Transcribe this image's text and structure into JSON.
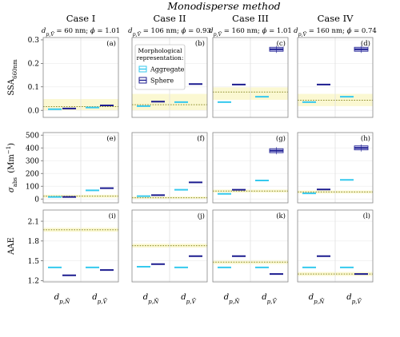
{
  "title": "Monodisperse method",
  "chart_data": {
    "type": "box",
    "columns": [
      {
        "case": "Case I",
        "subtitle": "d_p,V̄ = 60 nm; ϕ = 1.01"
      },
      {
        "case": "Case II",
        "subtitle": "d_p,V̄ = 106 nm; ϕ = 0.93"
      },
      {
        "case": "Case III",
        "subtitle": "d_p,V̄ = 160 nm; ϕ = 1.01"
      },
      {
        "case": "Case IV",
        "subtitle": "d_p,V̄ = 160 nm; ϕ = 0.74"
      }
    ],
    "x_categories": [
      "d_p,N̄",
      "d_p,V̄"
    ],
    "legend": {
      "title": "Morphological representation:",
      "entries": [
        {
          "name": "Aggregate",
          "color": "#35c9ee"
        },
        {
          "name": "Sphere",
          "color": "#1b1b8f"
        }
      ],
      "placement": "top-left of panel (b)"
    },
    "reference_line_color": "#8c8c2a",
    "reference_band_color": "#fbf8d2",
    "rows": [
      {
        "ylabel": "SSA_660nm",
        "ylim": [
          -0.03,
          0.31
        ],
        "yticks": [
          0.0,
          0.1,
          0.2,
          0.3
        ],
        "ytick_labels": [
          "0.0",
          "0.1",
          "0.2",
          "0.3"
        ],
        "panels": [
          {
            "label": "(a)",
            "reference": 0.016,
            "band": [
              0.0,
              0.048
            ],
            "aggregate": [
              {
                "x": "d_p,N̄",
                "value": 0.005
              },
              {
                "x": "d_p,V̄",
                "value": 0.012
              }
            ],
            "sphere": [
              {
                "x": "d_p,N̄",
                "value": 0.008
              },
              {
                "x": "d_p,V̄",
                "value": 0.021
              }
            ]
          },
          {
            "label": "(b)",
            "reference": 0.024,
            "band": [
              0.0,
              0.07
            ],
            "aggregate": [
              {
                "x": "d_p,N̄",
                "value": 0.018
              },
              {
                "x": "d_p,V̄",
                "value": 0.035
              }
            ],
            "sphere": [
              {
                "x": "d_p,N̄",
                "value": 0.037
              },
              {
                "x": "d_p,V̄",
                "value": 0.112
              }
            ]
          },
          {
            "label": "(c)",
            "reference": 0.078,
            "band": [
              0.045,
              0.098
            ],
            "aggregate": [
              {
                "x": "d_p,N̄",
                "value": 0.035
              },
              {
                "x": "d_p,V̄",
                "value": 0.058
              }
            ],
            "sphere": [
              {
                "x": "d_p,N̄",
                "value": 0.11
              },
              {
                "x": "d_p,V̄",
                "value": 0.26
              }
            ]
          },
          {
            "label": "(d)",
            "reference": 0.043,
            "band": [
              0.018,
              0.07
            ],
            "aggregate": [
              {
                "x": "d_p,N̄",
                "value": 0.035
              },
              {
                "x": "d_p,V̄",
                "value": 0.058
              }
            ],
            "sphere": [
              {
                "x": "d_p,N̄",
                "value": 0.11
              },
              {
                "x": "d_p,V̄",
                "value": 0.26
              }
            ]
          }
        ]
      },
      {
        "ylabel": "σ_abs (Mm⁻¹)",
        "ylim": [
          -30,
          520
        ],
        "yticks": [
          0,
          100,
          200,
          300,
          400,
          500
        ],
        "ytick_labels": [
          "0",
          "100",
          "200",
          "300",
          "400",
          "500"
        ],
        "panels": [
          {
            "label": "(e)",
            "reference": 22,
            "band": [
              10,
              34
            ],
            "aggregate": [
              {
                "x": "d_p,N̄",
                "value": 16
              },
              {
                "x": "d_p,V̄",
                "value": 68
              }
            ],
            "sphere": [
              {
                "x": "d_p,N̄",
                "value": 16
              },
              {
                "x": "d_p,V̄",
                "value": 85
              }
            ]
          },
          {
            "label": "(f)",
            "reference": 10,
            "band": [
              0,
              20
            ],
            "aggregate": [
              {
                "x": "d_p,N̄",
                "value": 22
              },
              {
                "x": "d_p,V̄",
                "value": 72
              }
            ],
            "sphere": [
              {
                "x": "d_p,N̄",
                "value": 30
              },
              {
                "x": "d_p,V̄",
                "value": 130
              }
            ]
          },
          {
            "label": "(g)",
            "reference": 62,
            "band": [
              50,
              74
            ],
            "aggregate": [
              {
                "x": "d_p,N̄",
                "value": 40
              },
              {
                "x": "d_p,V̄",
                "value": 145
              }
            ],
            "sphere": [
              {
                "x": "d_p,N̄",
                "value": 72
              },
              {
                "x": "d_p,V̄",
                "value": 378
              }
            ]
          },
          {
            "label": "(h)",
            "reference": 55,
            "band": [
              43,
              67
            ],
            "aggregate": [
              {
                "x": "d_p,N̄",
                "value": 44
              },
              {
                "x": "d_p,V̄",
                "value": 150
              }
            ],
            "sphere": [
              {
                "x": "d_p,N̄",
                "value": 75
              },
              {
                "x": "d_p,V̄",
                "value": 400
              }
            ]
          }
        ]
      },
      {
        "ylabel": "AAE",
        "ylim": [
          1.18,
          2.27
        ],
        "yticks": [
          1.2,
          1.5,
          1.8,
          2.1
        ],
        "ytick_labels": [
          "1.2",
          "1.5",
          "1.8",
          "2.1"
        ],
        "panels": [
          {
            "label": "(i)",
            "reference": 1.97,
            "band": [
              1.94,
              2.0
            ],
            "aggregate": [
              {
                "x": "d_p,N̄",
                "value": 1.4
              },
              {
                "x": "d_p,V̄",
                "value": 1.4
              }
            ],
            "sphere": [
              {
                "x": "d_p,N̄",
                "value": 1.28
              },
              {
                "x": "d_p,V̄",
                "value": 1.36
              }
            ]
          },
          {
            "label": "(j)",
            "reference": 1.73,
            "band": [
              1.7,
              1.76
            ],
            "aggregate": [
              {
                "x": "d_p,N̄",
                "value": 1.41
              },
              {
                "x": "d_p,V̄",
                "value": 1.4
              }
            ],
            "sphere": [
              {
                "x": "d_p,N̄",
                "value": 1.45
              },
              {
                "x": "d_p,V̄",
                "value": 1.57
              }
            ]
          },
          {
            "label": "(k)",
            "reference": 1.48,
            "band": [
              1.45,
              1.51
            ],
            "aggregate": [
              {
                "x": "d_p,N̄",
                "value": 1.4
              },
              {
                "x": "d_p,V̄",
                "value": 1.4
              }
            ],
            "sphere": [
              {
                "x": "d_p,N̄",
                "value": 1.57
              },
              {
                "x": "d_p,V̄",
                "value": 1.3
              }
            ]
          },
          {
            "label": "(l)",
            "reference": 1.3,
            "band": [
              1.27,
              1.33
            ],
            "aggregate": [
              {
                "x": "d_p,N̄",
                "value": 1.4
              },
              {
                "x": "d_p,V̄",
                "value": 1.4
              }
            ],
            "sphere": [
              {
                "x": "d_p,N̄",
                "value": 1.57
              },
              {
                "x": "d_p,V̄",
                "value": 1.3
              }
            ]
          }
        ]
      }
    ]
  }
}
